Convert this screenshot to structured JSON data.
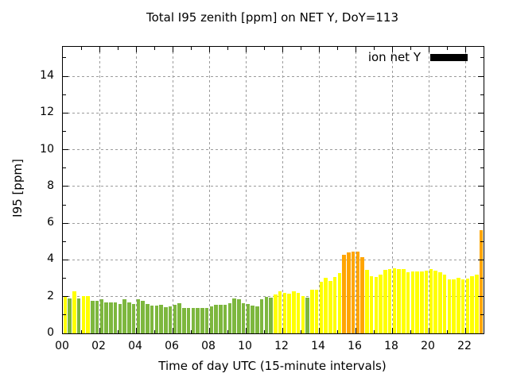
{
  "chart_data": {
    "type": "bar",
    "title": "Total I95 zenith [ppm] on NET Y, DoY=113",
    "xlabel": "Time of day UTC (15-minute intervals)",
    "ylabel": "I95 [ppm]",
    "legend": [
      {
        "label": "ion net Y",
        "swatch_color": "#000000"
      }
    ],
    "ylim": [
      0,
      15.6
    ],
    "x_hours_shown": 23,
    "interval_minutes": 15,
    "y_tick_labels": [
      "0",
      "2",
      "4",
      "6",
      "8",
      "10",
      "12",
      "14"
    ],
    "x_tick_labels": [
      "00",
      "02",
      "04",
      "06",
      "08",
      "10",
      "12",
      "14",
      "16",
      "18",
      "20",
      "22"
    ],
    "grid": true,
    "grid_color": "#9b9b9b",
    "frame_color": "#000000",
    "level_colors": {
      "green": "#7db73e",
      "yellow": "#ffff00",
      "orange": "#ffa500"
    },
    "times": [
      "00:00",
      "00:15",
      "00:30",
      "00:45",
      "01:00",
      "01:15",
      "01:30",
      "01:45",
      "02:00",
      "02:15",
      "02:30",
      "02:45",
      "03:00",
      "03:15",
      "03:30",
      "03:45",
      "04:00",
      "04:15",
      "04:30",
      "04:45",
      "05:00",
      "05:15",
      "05:30",
      "05:45",
      "06:00",
      "06:15",
      "06:30",
      "06:45",
      "07:00",
      "07:15",
      "07:30",
      "07:45",
      "08:00",
      "08:15",
      "08:30",
      "08:45",
      "09:00",
      "09:15",
      "09:30",
      "09:45",
      "10:00",
      "10:15",
      "10:30",
      "10:45",
      "11:00",
      "11:15",
      "11:30",
      "11:45",
      "12:00",
      "12:15",
      "12:30",
      "12:45",
      "13:00",
      "13:15",
      "13:30",
      "13:45",
      "14:00",
      "14:15",
      "14:30",
      "14:45",
      "15:00",
      "15:15",
      "15:30",
      "15:45",
      "16:00",
      "16:15",
      "16:30",
      "16:45",
      "17:00",
      "17:15",
      "17:30",
      "17:45",
      "18:00",
      "18:15",
      "18:30",
      "18:45",
      "19:00",
      "19:15",
      "19:30",
      "19:45",
      "20:00",
      "20:15",
      "20:30",
      "20:45",
      "21:00",
      "21:15",
      "21:30",
      "21:45",
      "22:00",
      "22:15",
      "22:30",
      "22:45"
    ],
    "values": [
      2.05,
      1.9,
      2.27,
      1.92,
      2.04,
      2.02,
      1.78,
      1.78,
      1.88,
      1.68,
      1.68,
      1.67,
      1.62,
      1.86,
      1.7,
      1.62,
      1.85,
      1.77,
      1.58,
      1.53,
      1.53,
      1.57,
      1.44,
      1.47,
      1.55,
      1.66,
      1.38,
      1.4,
      1.4,
      1.38,
      1.38,
      1.38,
      1.49,
      1.55,
      1.55,
      1.55,
      1.63,
      1.92,
      1.88,
      1.66,
      1.6,
      1.5,
      1.48,
      1.88,
      1.98,
      1.94,
      2.12,
      2.31,
      2.22,
      2.18,
      2.31,
      2.22,
      2.02,
      1.96,
      2.36,
      2.36,
      2.81,
      3.02,
      2.87,
      3.05,
      3.27,
      4.3,
      4.42,
      4.46,
      4.46,
      4.16,
      3.46,
      3.13,
      3.07,
      3.22,
      3.46,
      3.5,
      3.56,
      3.5,
      3.5,
      3.32,
      3.39,
      3.36,
      3.36,
      3.42,
      3.5,
      3.42,
      3.32,
      3.22,
      2.93,
      2.93,
      3.03,
      2.93,
      2.99,
      3.1,
      3.22,
      5.62
    ],
    "levels": [
      "yellow",
      "green",
      "yellow",
      "green",
      "yellow",
      "yellow",
      "green",
      "green",
      "green",
      "green",
      "green",
      "green",
      "green",
      "green",
      "green",
      "green",
      "green",
      "green",
      "green",
      "green",
      "green",
      "green",
      "green",
      "green",
      "green",
      "green",
      "green",
      "green",
      "green",
      "green",
      "green",
      "green",
      "green",
      "green",
      "green",
      "green",
      "green",
      "green",
      "green",
      "green",
      "green",
      "green",
      "green",
      "green",
      "green",
      "green",
      "yellow",
      "yellow",
      "yellow",
      "yellow",
      "yellow",
      "yellow",
      "yellow",
      "green",
      "yellow",
      "yellow",
      "yellow",
      "yellow",
      "yellow",
      "yellow",
      "yellow",
      "orange",
      "orange",
      "orange",
      "orange",
      "orange",
      "yellow",
      "yellow",
      "yellow",
      "yellow",
      "yellow",
      "yellow",
      "yellow",
      "yellow",
      "yellow",
      "yellow",
      "yellow",
      "yellow",
      "yellow",
      "yellow",
      "yellow",
      "yellow",
      "yellow",
      "yellow",
      "yellow",
      "yellow",
      "yellow",
      "yellow",
      "yellow",
      "yellow",
      "yellow",
      "orange"
    ]
  }
}
